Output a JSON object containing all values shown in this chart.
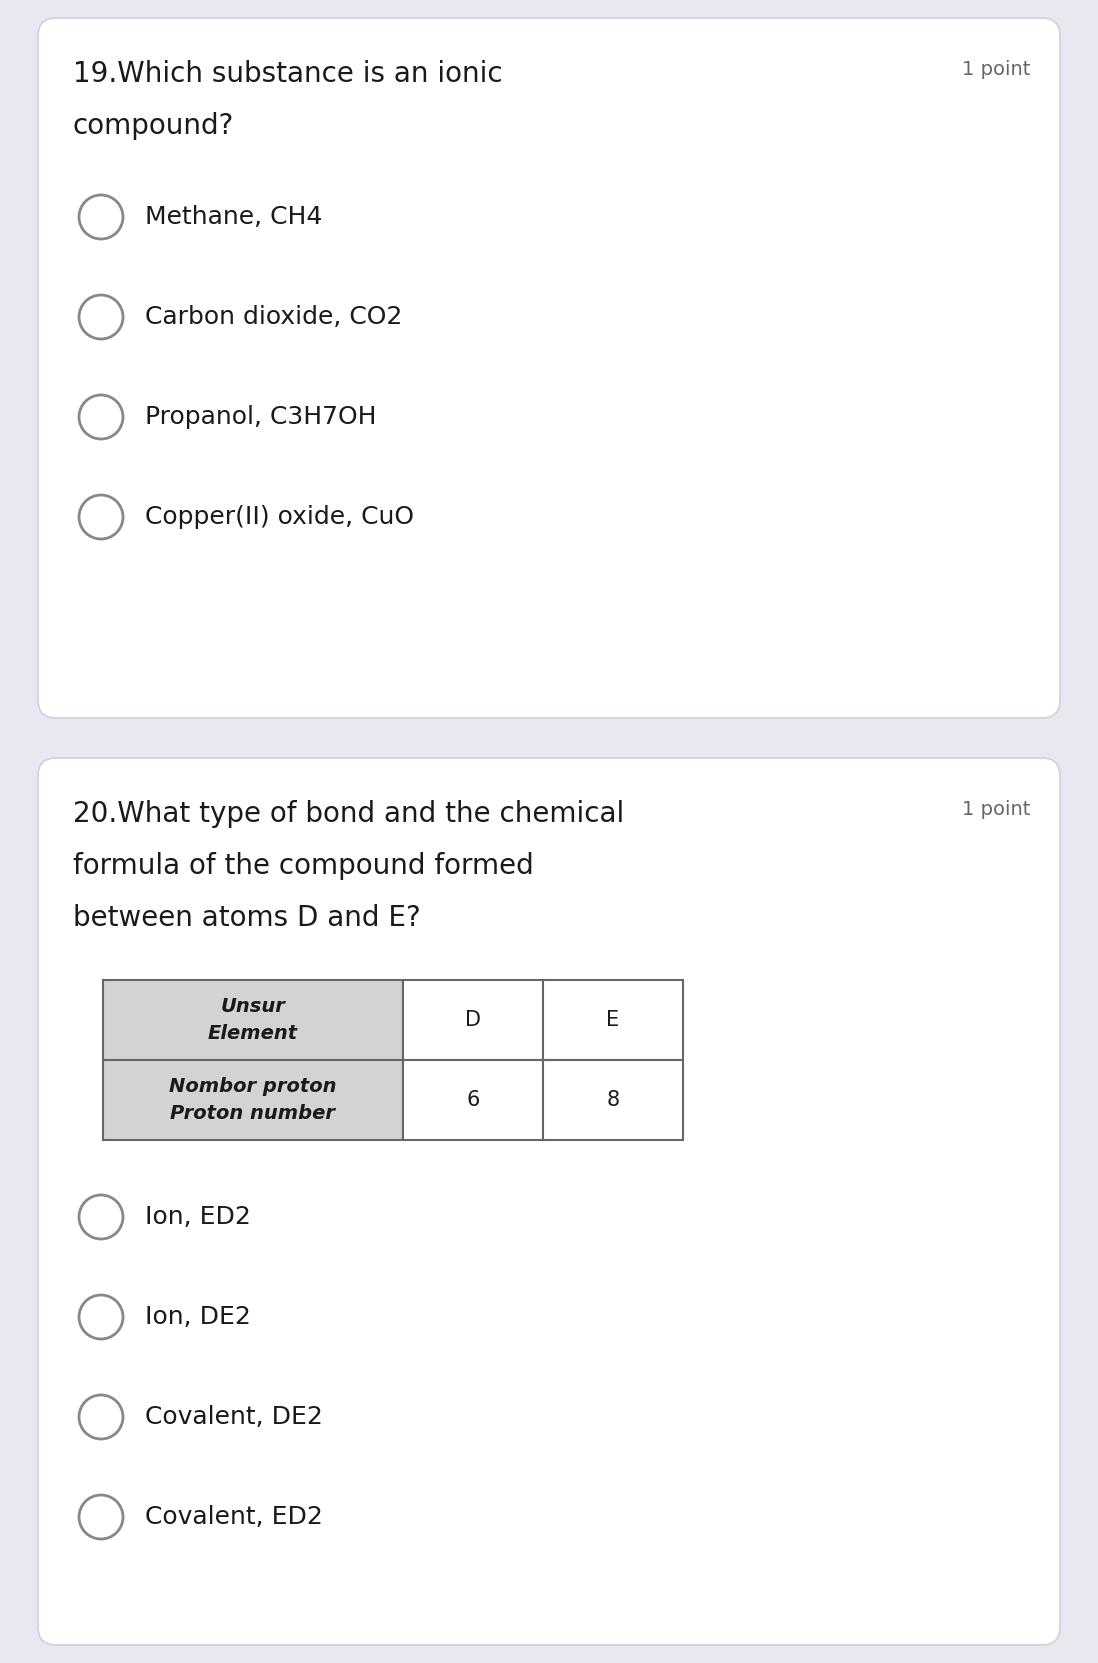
{
  "background_color": "#e8e8f0",
  "card_color": "#ffffff",
  "card_border_color": "#d0d0d8",
  "question1_number": "19.",
  "question1_points": "1 point",
  "question1_options": [
    "Methane, CH4",
    "Carbon dioxide, CO2",
    "Propanol, C3H7OH",
    "Copper(II) oxide, CuO"
  ],
  "question2_number": "20.",
  "question2_line1": "What type of bond and the chemical",
  "question2_line2": "formula of the compound formed",
  "question2_line3": "between atoms D and E?",
  "question2_points": "1 point",
  "table_col0_header": "Unsur\nElement",
  "table_col0_row2": "Nombor proton\nProton number",
  "table_col1_header": "D",
  "table_col2_header": "E",
  "table_col1_val": "6",
  "table_col2_val": "8",
  "table_header_bg": "#d3d3d3",
  "table_border_color": "#666666",
  "question2_options": [
    "Ion, ED2",
    "Ion, DE2",
    "Covalent, DE2",
    "Covalent, ED2"
  ],
  "text_color": "#1a1a1a",
  "points_color": "#666666",
  "circle_edge_color": "#888888",
  "circle_lw": 2.0,
  "fig_width": 10.98,
  "fig_height": 16.63,
  "dpi": 100
}
